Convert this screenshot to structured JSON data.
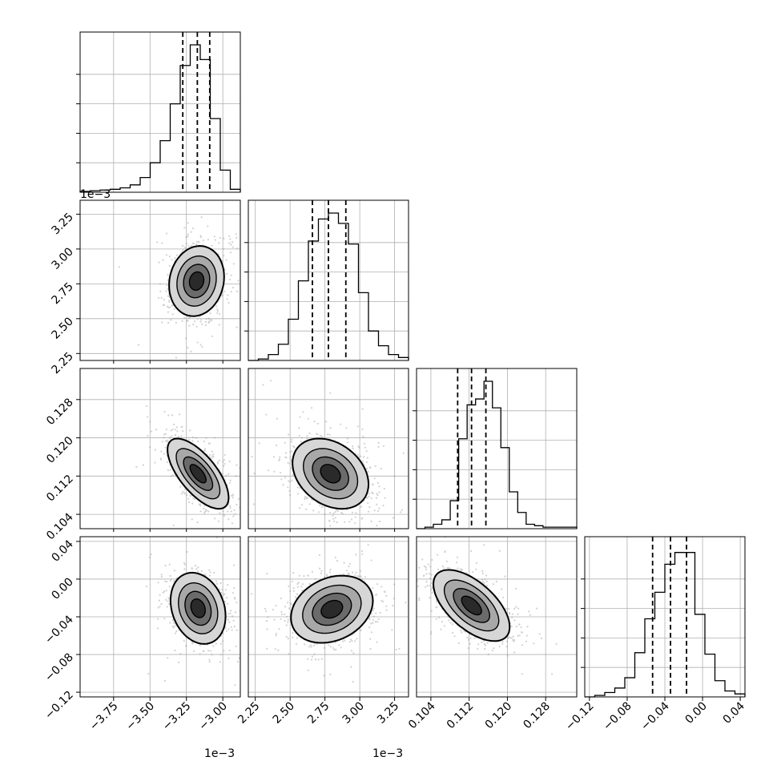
{
  "chart_data": {
    "type": "corner",
    "colors": {
      "line": "#000000",
      "grid": "#b0b0b0",
      "scatter": "#9a9a9a"
    },
    "grid": true,
    "params": [
      {
        "range": [
          -3.98,
          -2.88
        ],
        "ticks": [
          -3.75,
          -3.5,
          -3.25,
          -3.0
        ],
        "tick_labels": [
          "−3.75",
          "−3.50",
          "−3.25",
          "−3.00"
        ],
        "offset_text": "1e−3",
        "quantiles": [
          -3.275,
          -3.175,
          -3.09
        ],
        "hist": [
          0.005,
          0.01,
          0.015,
          0.02,
          0.03,
          0.05,
          0.1,
          0.2,
          0.35,
          0.6,
          0.86,
          1.0,
          0.9,
          0.5,
          0.15,
          0.02
        ]
      },
      {
        "range": [
          2.2,
          3.35
        ],
        "ticks": [
          2.25,
          2.5,
          2.75,
          3.0,
          3.25
        ],
        "tick_labels": [
          "2.25",
          "2.50",
          "2.75",
          "3.00",
          "3.25"
        ],
        "offset_text": "1e−3",
        "quantiles": [
          2.66,
          2.775,
          2.9
        ],
        "hist": [
          0.0,
          0.01,
          0.04,
          0.11,
          0.28,
          0.54,
          0.81,
          0.96,
          1.0,
          0.93,
          0.79,
          0.46,
          0.2,
          0.1,
          0.04,
          0.02
        ]
      },
      {
        "range": [
          0.101,
          0.1345
        ],
        "ticks": [
          0.104,
          0.112,
          0.12,
          0.128
        ],
        "tick_labels": [
          "0.104",
          "0.112",
          "0.120",
          "0.128"
        ],
        "quantiles": [
          0.1096,
          0.1125,
          0.1155
        ],
        "hist": [
          0.0,
          0.01,
          0.03,
          0.06,
          0.19,
          0.61,
          0.84,
          0.88,
          1.0,
          0.82,
          0.55,
          0.25,
          0.11,
          0.03,
          0.02,
          0.01,
          0.01,
          0.01,
          0.01
        ]
      },
      {
        "range": [
          -0.125,
          0.045
        ],
        "ticks": [
          -0.12,
          -0.08,
          -0.04,
          0.0,
          0.04
        ],
        "tick_labels": [
          "−0.12",
          "−0.08",
          "−0.04",
          "0.00",
          "0.04"
        ],
        "quantiles": [
          -0.053,
          -0.034,
          -0.017
        ],
        "hist": [
          0.0,
          0.01,
          0.03,
          0.06,
          0.13,
          0.3,
          0.53,
          0.71,
          0.9,
          0.98,
          0.98,
          0.56,
          0.29,
          0.11,
          0.04,
          0.02
        ]
      }
    ],
    "pairs": [
      {
        "row": 1,
        "col": 0,
        "center": [
          -3.18,
          2.77
        ],
        "sigma": [
          0.09,
          0.12
        ],
        "rho": 0.12
      },
      {
        "row": 2,
        "col": 0,
        "center": [
          -3.17,
          0.1125
        ],
        "sigma": [
          0.1,
          0.0035
        ],
        "rho": -0.68
      },
      {
        "row": 2,
        "col": 1,
        "center": [
          2.79,
          0.1125
        ],
        "sigma": [
          0.13,
          0.0035
        ],
        "rho": -0.3
      },
      {
        "row": 3,
        "col": 0,
        "center": [
          -3.17,
          -0.031
        ],
        "sigma": [
          0.09,
          0.018
        ],
        "rho": -0.22
      },
      {
        "row": 3,
        "col": 1,
        "center": [
          2.8,
          -0.032
        ],
        "sigma": [
          0.14,
          0.017
        ],
        "rho": 0.25
      },
      {
        "row": 3,
        "col": 2,
        "center": [
          0.1125,
          -0.028
        ],
        "sigma": [
          0.0038,
          0.018
        ],
        "rho": -0.6
      }
    ]
  }
}
